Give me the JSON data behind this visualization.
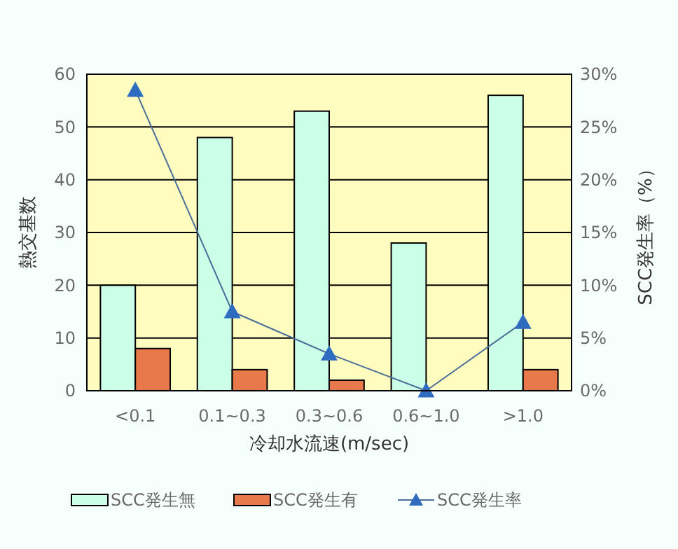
{
  "chart_data": {
    "type": "bar",
    "xlabel": "冷却水流速(m/sec)",
    "ylabel": "熱交基数",
    "y2label": "SCC発生率（%）",
    "categories": [
      "<0.1",
      "0.1~0.3",
      "0.3~0.6",
      "0.6~1.0",
      ">1.0"
    ],
    "series": [
      {
        "name": "SCC発生無",
        "color": "#ccffe8",
        "values": [
          20,
          48,
          53,
          28,
          56
        ]
      },
      {
        "name": "SCC発生有",
        "color": "#e8794a",
        "values": [
          8,
          4,
          2,
          0,
          4
        ]
      },
      {
        "name": "SCC発生率",
        "type": "line",
        "axis": "y2",
        "color": "#2f6cc0",
        "marker": "triangle",
        "values": [
          28.5,
          7.5,
          3.5,
          0,
          6.5
        ]
      }
    ],
    "ylim": [
      0,
      60
    ],
    "yticks": [
      0,
      10,
      20,
      30,
      40,
      50,
      60
    ],
    "y2lim": [
      0,
      30
    ],
    "y2ticks": [
      {
        "value": 0,
        "label": "0%"
      },
      {
        "value": 5,
        "label": "5%"
      },
      {
        "value": 10,
        "label": "10%"
      },
      {
        "value": 15,
        "label": "15%"
      },
      {
        "value": 20,
        "label": "20%"
      },
      {
        "value": 25,
        "label": "25%"
      },
      {
        "value": 30,
        "label": "30%"
      }
    ],
    "grid": "y",
    "legend": "bottom"
  }
}
